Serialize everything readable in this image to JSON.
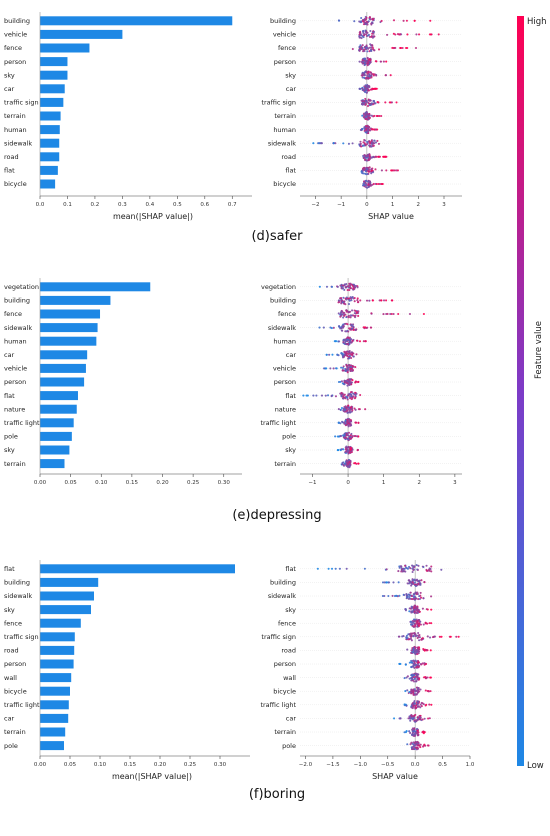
{
  "colorbar": {
    "label": "Feature value",
    "high": "High",
    "low": "Low",
    "color_high": "#ff0052",
    "color_low": "#1e88e5"
  },
  "chart_data": [
    {
      "panel": "d",
      "caption": "(d)safer",
      "bar": {
        "type": "bar",
        "orientation": "horizontal",
        "categories": [
          "building",
          "vehicle",
          "fence",
          "person",
          "sky",
          "car",
          "traffic sign",
          "terrain",
          "human",
          "sidewalk",
          "road",
          "flat",
          "bicycle"
        ],
        "values": [
          0.7,
          0.3,
          0.18,
          0.1,
          0.1,
          0.09,
          0.085,
          0.075,
          0.072,
          0.07,
          0.07,
          0.065,
          0.055
        ],
        "xlabel": "mean(|SHAP value|)",
        "xlim": [
          0,
          0.75
        ],
        "xticks": [
          "0.0",
          "0.1",
          "0.2",
          "0.3",
          "0.4",
          "0.5",
          "0.6",
          "0.7"
        ],
        "color": "#1e88e5"
      },
      "beeswarm": {
        "type": "scatter",
        "categories": [
          "building",
          "vehicle",
          "fence",
          "person",
          "sky",
          "car",
          "traffic sign",
          "terrain",
          "human",
          "sidewalk",
          "road",
          "flat",
          "bicycle"
        ],
        "xlabel": "SHAP value",
        "xlim": [
          -2.6,
          3.7
        ],
        "xticks": [
          "−2",
          "−1",
          "0",
          "1",
          "2",
          "3"
        ],
        "spread": [
          [
            -1.2,
            2.5
          ],
          [
            -0.6,
            3.3
          ],
          [
            -0.6,
            2.0
          ],
          [
            -0.4,
            0.8
          ],
          [
            -0.3,
            1.0
          ],
          [
            -0.3,
            0.4
          ],
          [
            -0.2,
            1.2
          ],
          [
            -0.2,
            0.6
          ],
          [
            -0.25,
            0.4
          ],
          [
            -2.2,
            0.6
          ],
          [
            -0.2,
            0.8
          ],
          [
            -0.2,
            1.3
          ],
          [
            -0.2,
            0.7
          ]
        ]
      }
    },
    {
      "panel": "e",
      "caption": "(e)depressing",
      "bar": {
        "type": "bar",
        "orientation": "horizontal",
        "categories": [
          "vegetation",
          "building",
          "fence",
          "sidewalk",
          "human",
          "car",
          "vehicle",
          "person",
          "flat",
          "nature",
          "traffic light",
          "pole",
          "sky",
          "terrain"
        ],
        "values": [
          0.18,
          0.115,
          0.098,
          0.094,
          0.092,
          0.077,
          0.075,
          0.072,
          0.062,
          0.06,
          0.055,
          0.052,
          0.048,
          0.04
        ],
        "xlabel": "",
        "xlim": [
          0,
          0.32
        ],
        "xticks": [
          "0.00",
          "0.05",
          "0.10",
          "0.15",
          "0.20",
          "0.25",
          "0.30"
        ],
        "color": "#1e88e5"
      },
      "beeswarm": {
        "type": "scatter",
        "categories": [
          "vegetation",
          "building",
          "fence",
          "sidewalk",
          "human",
          "car",
          "vehicle",
          "person",
          "flat",
          "nature",
          "traffic light",
          "pole",
          "sky",
          "terrain"
        ],
        "xlabel": "",
        "xlim": [
          -1.35,
          3.2
        ],
        "xticks": [
          "−1",
          "0",
          "1",
          "2",
          "3"
        ],
        "spread": [
          [
            -0.9,
            0.4
          ],
          [
            -0.3,
            1.6
          ],
          [
            -0.3,
            2.3
          ],
          [
            -0.9,
            0.8
          ],
          [
            -0.4,
            0.5
          ],
          [
            -0.8,
            0.3
          ],
          [
            -0.7,
            0.3
          ],
          [
            -0.3,
            0.4
          ],
          [
            -1.3,
            0.4
          ],
          [
            -0.3,
            0.5
          ],
          [
            -0.3,
            0.3
          ],
          [
            -0.4,
            0.3
          ],
          [
            -0.3,
            0.3
          ],
          [
            -0.2,
            0.3
          ]
        ]
      }
    },
    {
      "panel": "f",
      "caption": "(f)boring",
      "bar": {
        "type": "bar",
        "orientation": "horizontal",
        "categories": [
          "flat",
          "building",
          "sidewalk",
          "sky",
          "fence",
          "traffic sign",
          "road",
          "person",
          "wall",
          "bicycle",
          "traffic light",
          "car",
          "terrain",
          "pole"
        ],
        "values": [
          0.325,
          0.097,
          0.09,
          0.085,
          0.068,
          0.058,
          0.057,
          0.056,
          0.052,
          0.05,
          0.048,
          0.047,
          0.042,
          0.04
        ],
        "xlabel": "mean(|SHAP value|)",
        "xlim": [
          0,
          0.34
        ],
        "xticks": [
          "0.00",
          "0.05",
          "0.10",
          "0.15",
          "0.20",
          "0.25",
          "0.30"
        ],
        "color": "#1e88e5"
      },
      "beeswarm": {
        "type": "scatter",
        "categories": [
          "flat",
          "building",
          "sidewalk",
          "sky",
          "fence",
          "traffic sign",
          "road",
          "person",
          "wall",
          "bicycle",
          "traffic light",
          "car",
          "terrain",
          "pole"
        ],
        "xlabel": "SHAP value",
        "xlim": [
          -2.1,
          1.0
        ],
        "xticks": [
          "−2.0",
          "−1.5",
          "−1.0",
          "−0.5",
          "0.0",
          "0.5",
          "1.0"
        ],
        "spread": [
          [
            -1.8,
            0.55
          ],
          [
            -0.6,
            0.2
          ],
          [
            -0.8,
            0.3
          ],
          [
            -0.2,
            0.3
          ],
          [
            -0.2,
            0.3
          ],
          [
            -0.3,
            0.8
          ],
          [
            -0.2,
            0.3
          ],
          [
            -0.3,
            0.2
          ],
          [
            -0.2,
            0.3
          ],
          [
            -0.2,
            0.3
          ],
          [
            -0.2,
            0.3
          ],
          [
            -0.4,
            0.3
          ],
          [
            -0.2,
            0.2
          ],
          [
            -0.2,
            0.3
          ]
        ]
      }
    }
  ]
}
